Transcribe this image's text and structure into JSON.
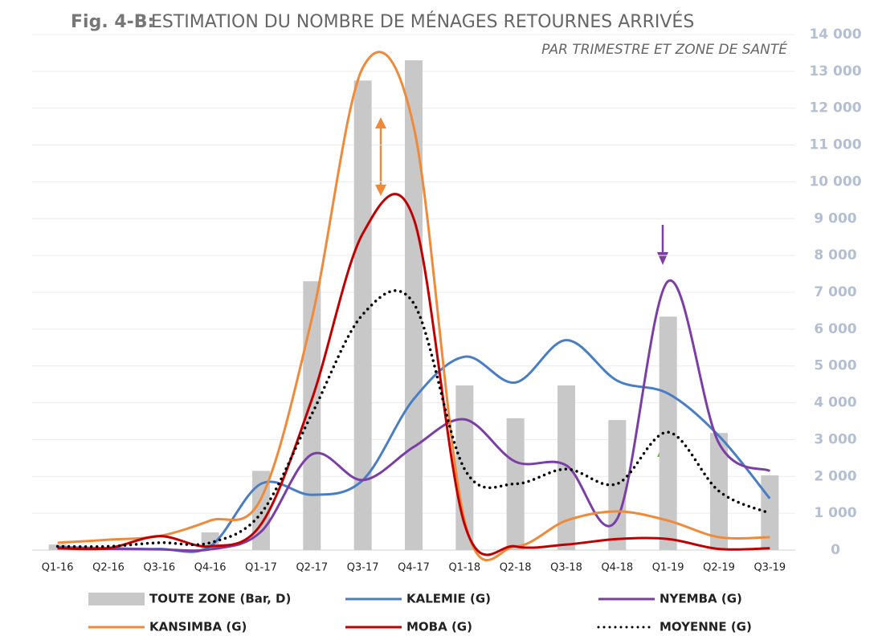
{
  "chart_data": {
    "type": "bar+line",
    "title_label": "Fig. 4-B:",
    "title": "ESTIMATION DU NOMBRE DE MÉNAGES RETOURNES ARRIVÉS",
    "subtitle": "PAR TRIMESTRE ET ZONE DE SANTÉ",
    "categories": [
      "Q1-16",
      "Q2-16",
      "Q3-16",
      "Q4-16",
      "Q1-17",
      "Q2-17",
      "Q3-17",
      "Q4-17",
      "Q1-18",
      "Q2-18",
      "Q3-18",
      "Q4-18",
      "Q1-19",
      "Q2-19",
      "Q3-19"
    ],
    "ylim": [
      0,
      14000
    ],
    "yticks": [
      0,
      {
        "value": 1000,
        "label": "1 000"
      },
      {
        "value": 2000,
        "label": "2 000"
      },
      {
        "value": 3000,
        "label": "3 000"
      },
      {
        "value": 4000,
        "label": "4 000"
      },
      {
        "value": 5000,
        "label": "5 000"
      },
      {
        "value": 6000,
        "label": "6 000"
      },
      {
        "value": 7000,
        "label": "7 000"
      },
      {
        "value": 8000,
        "label": "8 000"
      },
      {
        "value": 9000,
        "label": "9 000"
      },
      {
        "value": 10000,
        "label": "10 000"
      },
      {
        "value": 11000,
        "label": "11 000"
      },
      {
        "value": 12000,
        "label": "12 000"
      },
      {
        "value": 13000,
        "label": "13 000"
      },
      {
        "value": 14000,
        "label": "14 000"
      }
    ],
    "grid": true,
    "series": [
      {
        "name": "TOUTE ZONE (Bar, D)",
        "type": "bar",
        "color": "#c8c8c8",
        "values": [
          150,
          30,
          50,
          480,
          2150,
          7300,
          12750,
          13300,
          4470,
          3580,
          4470,
          3530,
          6340,
          3180,
          2030
        ]
      },
      {
        "name": "KALEMIE (G)",
        "type": "line",
        "color": "#4a7ec4",
        "values": [
          80,
          50,
          30,
          100,
          1800,
          1500,
          1900,
          4100,
          5250,
          4550,
          5700,
          4600,
          4250,
          3100,
          1400
        ]
      },
      {
        "name": "NYEMBA (G)",
        "type": "line",
        "color": "#7b3ea6",
        "values": [
          50,
          30,
          20,
          20,
          500,
          2600,
          1900,
          2800,
          3550,
          2400,
          2300,
          850,
          7300,
          2900,
          2150
        ]
      },
      {
        "name": "KANSIMBA (G)",
        "type": "line",
        "color": "#ef8a3a",
        "values": [
          200,
          280,
          380,
          800,
          1400,
          6300,
          13100,
          11500,
          800,
          100,
          800,
          1050,
          800,
          350,
          350
        ]
      },
      {
        "name": "MOBA (G)",
        "type": "line",
        "color": "#c00000",
        "values": [
          50,
          50,
          380,
          100,
          700,
          4100,
          8600,
          9000,
          700,
          100,
          150,
          300,
          300,
          30,
          50
        ]
      },
      {
        "name": "MOYENNE (G)",
        "type": "dotted",
        "color": "#000000",
        "values": [
          100,
          100,
          200,
          200,
          1000,
          3700,
          6400,
          6700,
          2200,
          1800,
          2200,
          1800,
          3200,
          1600,
          1000
        ]
      }
    ]
  }
}
